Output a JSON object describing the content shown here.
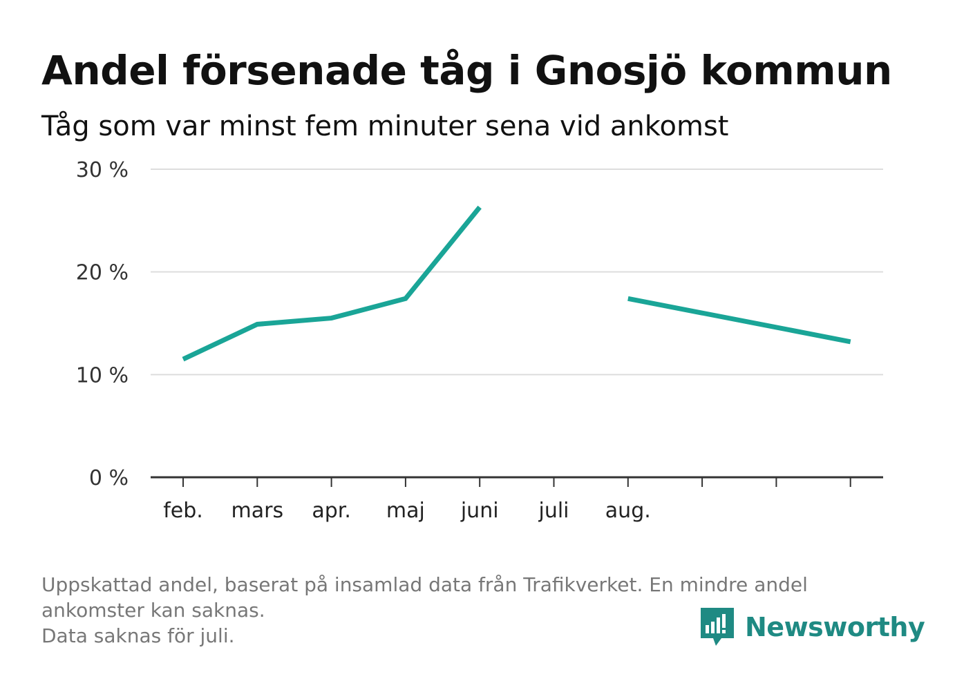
{
  "title": "Andel försenade tåg i Gnosjö kommun",
  "subtitle": "Tåg som var minst fem minuter sena vid ankomst",
  "footnote": {
    "line1": "Uppskattad andel, baserat på insamlad data från Trafikverket. En mindre andel",
    "line2": "ankomster kan saknas.",
    "line3": "Data saknas för juli."
  },
  "brand": {
    "name": "Newsworthy",
    "color": "#1f8a83"
  },
  "colors": {
    "line": "#1aa597",
    "grid": "#dddddd",
    "axis": "#333333"
  },
  "chart_data": {
    "type": "line",
    "title": "Andel försenade tåg i Gnosjö kommun",
    "subtitle": "Tåg som var minst fem minuter sena vid ankomst",
    "xlabel": "",
    "ylabel": "",
    "categories": [
      "feb.",
      "mars",
      "apr.",
      "maj",
      "juni",
      "juli",
      "aug.",
      "",
      "",
      ""
    ],
    "series": [
      {
        "values": [
          11.5,
          14.9,
          15.5,
          17.4,
          26.3,
          null,
          17.4,
          16.0,
          14.6,
          13.2
        ]
      }
    ],
    "ylim": [
      0,
      30
    ],
    "yticks": [
      0,
      10,
      20,
      30
    ],
    "ytick_labels": [
      "0 %",
      "10 %",
      "20 %",
      "30 %"
    ],
    "grid": true,
    "legend": "none"
  }
}
